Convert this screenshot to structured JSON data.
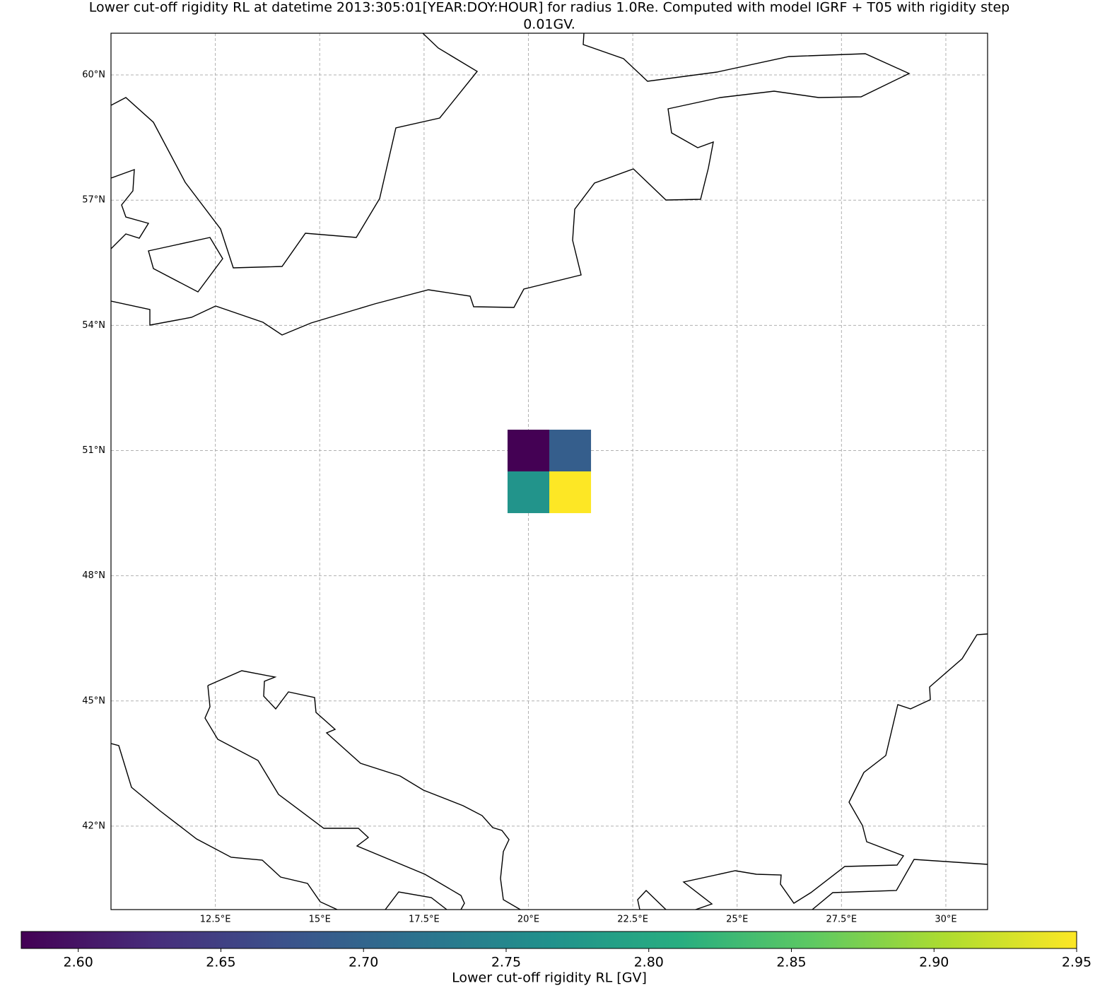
{
  "chart_data": {
    "type": "heatmap",
    "title": [
      "Lower cut-off rigidity RL at datetime 2013:305:01[YEAR:DOY:HOUR] for radius 1.0Re. Computed with model IGRF + T05 with rigidity step",
      "0.01GV."
    ],
    "x": [
      20,
      21
    ],
    "y": [
      50,
      51
    ],
    "values": [
      [
        2.77,
        2.95
      ],
      [
        2.58,
        2.69
      ]
    ],
    "colormap": "viridis",
    "clim": [
      2.58,
      2.95
    ],
    "xlim": [
      10,
      31
    ],
    "ylim": [
      40,
      61
    ],
    "xticks": [
      {
        "value": 12.5,
        "label": "12.5°E"
      },
      {
        "value": 15,
        "label": "15°E"
      },
      {
        "value": 17.5,
        "label": "17.5°E"
      },
      {
        "value": 20,
        "label": "20°E"
      },
      {
        "value": 22.5,
        "label": "22.5°E"
      },
      {
        "value": 25,
        "label": "25°E"
      },
      {
        "value": 27.5,
        "label": "27.5°E"
      },
      {
        "value": 30,
        "label": "30°E"
      }
    ],
    "yticks": [
      {
        "value": 42,
        "label": "42°N"
      },
      {
        "value": 45,
        "label": "45°N"
      },
      {
        "value": 48,
        "label": "48°N"
      },
      {
        "value": 51,
        "label": "51°N"
      },
      {
        "value": 54,
        "label": "54°N"
      },
      {
        "value": 57,
        "label": "57°N"
      },
      {
        "value": 60,
        "label": "60°N"
      }
    ],
    "grid": true,
    "colorbar_label": "Lower cut-off rigidity RL [GV]",
    "colorbar_ticks": [
      {
        "value": 2.6,
        "label": "2.60"
      },
      2.65,
      {
        "value": 2.7,
        "label": "2.70"
      },
      2.75,
      {
        "value": 2.8,
        "label": "2.80"
      },
      2.85,
      {
        "value": 2.9,
        "label": "2.90"
      },
      2.95
    ]
  }
}
